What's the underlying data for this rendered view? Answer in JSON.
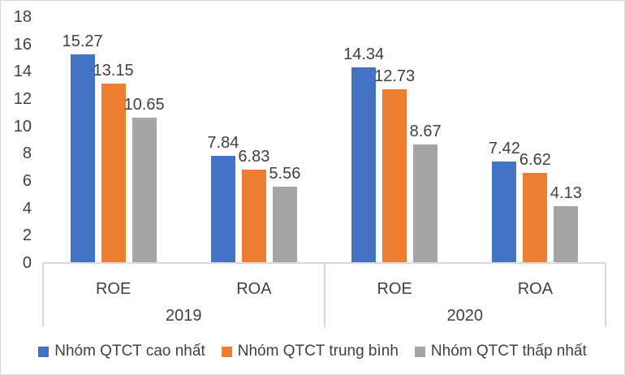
{
  "chart_data": {
    "type": "bar",
    "title": "",
    "ylim": [
      0,
      18
    ],
    "ytick_step": 2,
    "grid": false,
    "legend_position": "bottom",
    "axis_color": "#d9d9d9",
    "text_color": "#404040",
    "year_groups": [
      {
        "label": "2019",
        "subcategories": [
          "ROE",
          "ROA"
        ]
      },
      {
        "label": "2020",
        "subcategories": [
          "ROE",
          "ROA"
        ]
      }
    ],
    "categories": [
      "2019 ROE",
      "2019 ROA",
      "2020 ROE",
      "2020 ROA"
    ],
    "series": [
      {
        "name": "Nhóm QTCT cao nhất",
        "color": "#4472C4",
        "values": [
          15.27,
          7.84,
          14.34,
          7.42
        ]
      },
      {
        "name": "Nhóm QTCT trung bình",
        "color": "#ED7D31",
        "values": [
          13.15,
          6.83,
          12.73,
          6.62
        ]
      },
      {
        "name": "Nhóm QTCT thấp nhất",
        "color": "#A5A5A5",
        "values": [
          10.65,
          5.56,
          8.67,
          4.13
        ]
      }
    ]
  }
}
